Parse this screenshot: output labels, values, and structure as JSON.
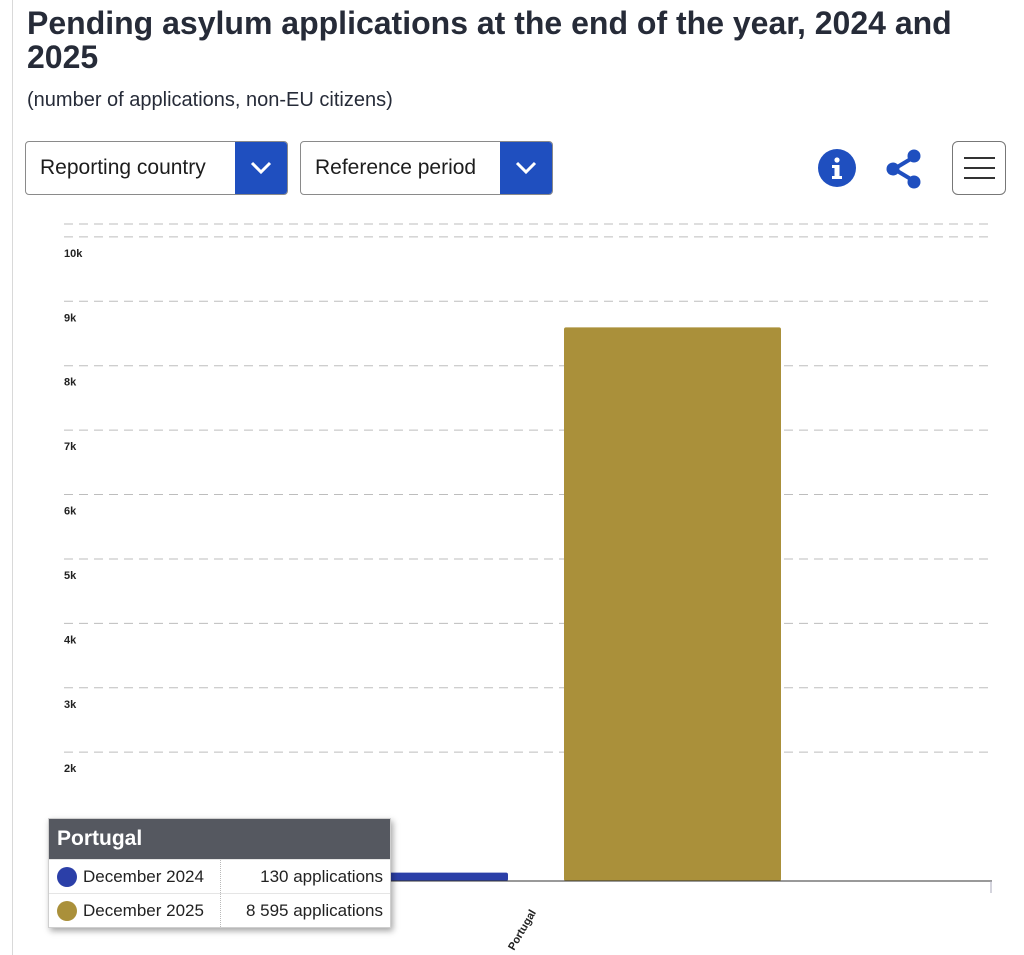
{
  "header": {
    "title": "Pending asylum applications at the end of the year, 2024 and 2025",
    "subtitle": "(number of applications, non-EU citizens)"
  },
  "toolbar": {
    "country_dropdown_label": "Reporting country",
    "period_dropdown_label": "Reference period",
    "info_icon": "info-icon",
    "share_icon": "share-icon",
    "menu_icon": "hamburger-menu-icon"
  },
  "colors": {
    "accent": "#1f4fbf",
    "series_2024": "#2b3fa8",
    "series_2025": "#aa903a"
  },
  "chart_data": {
    "type": "bar",
    "title": "Pending asylum applications at the end of the year, 2024 and 2025",
    "subtitle": "(number of applications, non-EU citizens)",
    "categories": [
      "Portugal"
    ],
    "series": [
      {
        "name": "December 2024",
        "values": [
          130
        ]
      },
      {
        "name": "December 2025",
        "values": [
          8595
        ]
      }
    ],
    "y_ticks": [
      "2k",
      "3k",
      "4k",
      "5k",
      "6k",
      "7k",
      "8k",
      "9k",
      "10k"
    ],
    "y_tick_values": [
      2000,
      3000,
      4000,
      5000,
      6000,
      7000,
      8000,
      9000,
      10000
    ],
    "ylim": [
      0,
      10200
    ],
    "grid": true,
    "gridline_style": "dashed"
  },
  "tooltip": {
    "title": "Portugal",
    "rows": [
      {
        "label": "December 2024",
        "value": "130 applications"
      },
      {
        "label": "December 2025",
        "value": "8 595 applications"
      }
    ]
  }
}
